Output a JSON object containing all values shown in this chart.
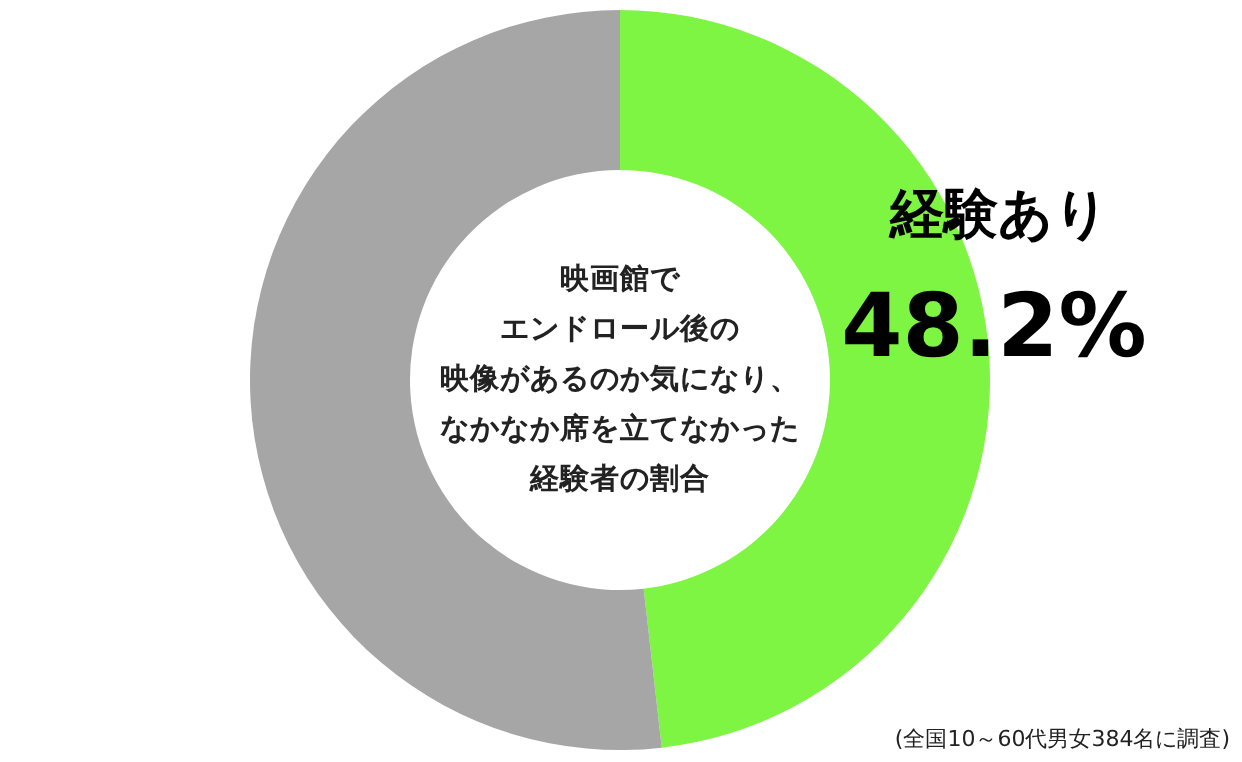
{
  "chart_data": {
    "type": "donut",
    "title": "映画館でエンドロール後の映像があるのか気になり、なかなか席を立てなかった経験者の割合",
    "categories": [
      "経験あり",
      null
    ],
    "values": [
      48.2,
      51.8
    ],
    "colors": [
      "#7df542",
      "#a6a6a6"
    ],
    "value_labels": [
      "48.2%",
      null
    ],
    "annotations": [
      "(全国10～60代男女384名に調査)"
    ]
  }
}
